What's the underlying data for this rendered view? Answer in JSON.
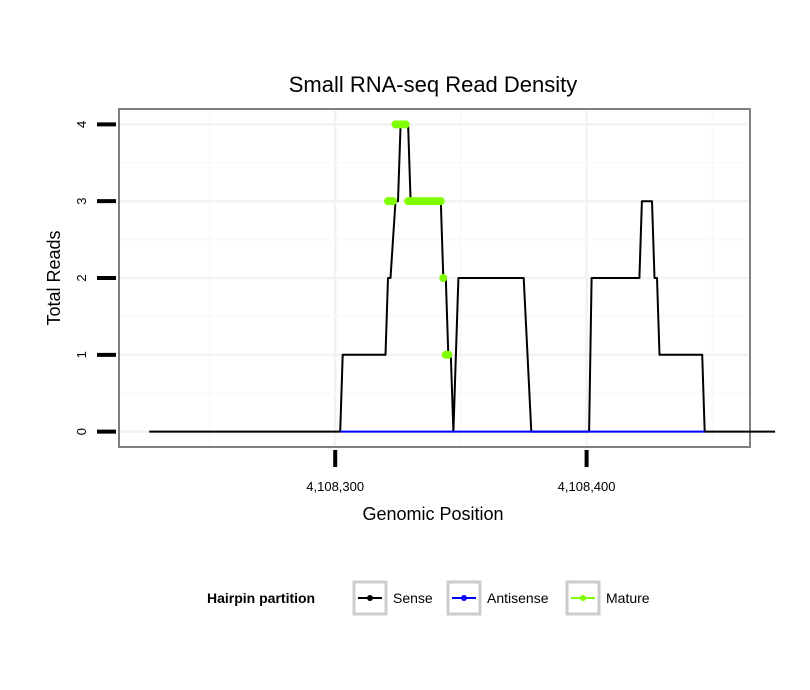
{
  "chart_data": {
    "type": "line",
    "title": "Small RNA-seq Read Density",
    "xlabel": "Genomic Position",
    "ylabel": "Total Reads",
    "xlim": [
      4108214,
      4108465
    ],
    "ylim": [
      -0.2,
      4.2
    ],
    "xticks": [
      4108300,
      4108400
    ],
    "xtick_labels": [
      "4,108,300",
      "4,108,400"
    ],
    "yticks": [
      0,
      1,
      2,
      3,
      4
    ],
    "ytick_labels": [
      "0",
      "1",
      "2",
      "3",
      "4"
    ],
    "grid": true,
    "legend": {
      "title": "Hairpin partition",
      "position": "bottom",
      "entries": [
        "Sense",
        "Antisense",
        "Mature"
      ]
    },
    "series": [
      {
        "name": "Sense",
        "color": "#000000",
        "x": [
          4108226,
          4108302,
          4108303,
          4108320,
          4108321,
          4108322,
          4108324,
          4108325,
          4108326,
          4108329,
          4108330,
          4108342,
          4108343,
          4108344,
          4108345,
          4108346,
          4108347,
          4108348,
          4108349,
          4108351,
          4108375,
          4108378,
          4108401,
          4108402,
          4108421,
          4108422,
          4108426,
          4108427,
          4108428,
          4108429,
          4108446,
          4108447,
          4108475
        ],
        "values": [
          0,
          0,
          1,
          1,
          2,
          2,
          3,
          3,
          4,
          4,
          3,
          3,
          2,
          2,
          1,
          1,
          0,
          1,
          2,
          2,
          2,
          0,
          0,
          2,
          2,
          3,
          3,
          2,
          2,
          1,
          1,
          0,
          0
        ]
      },
      {
        "name": "Antisense",
        "color": "#0000ff",
        "x": [
          4108302,
          4108447
        ],
        "values": [
          0,
          0
        ]
      },
      {
        "name": "Mature",
        "color": "#7fff00",
        "x": [
          4108321,
          4108322,
          4108323,
          4108324,
          4108325,
          4108326,
          4108327,
          4108328,
          4108329,
          4108330,
          4108331,
          4108332,
          4108333,
          4108334,
          4108335,
          4108336,
          4108337,
          4108338,
          4108339,
          4108340,
          4108341,
          4108342,
          4108343,
          4108344,
          4108345
        ],
        "values": [
          3,
          3,
          3,
          4,
          4,
          4,
          4,
          4,
          3,
          3,
          3,
          3,
          3,
          3,
          3,
          3,
          3,
          3,
          3,
          3,
          3,
          3,
          2,
          1,
          1
        ]
      }
    ]
  }
}
